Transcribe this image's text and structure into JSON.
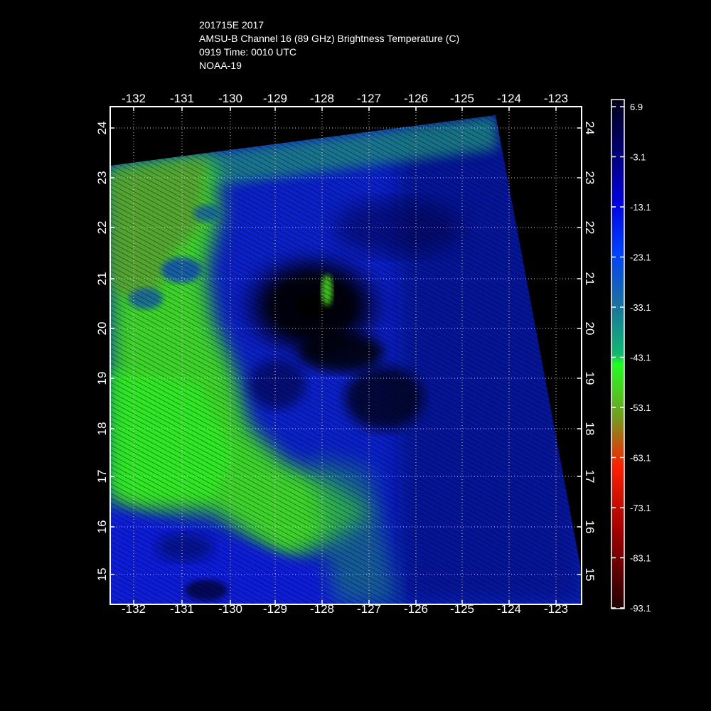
{
  "header": {
    "line1": "201715E 2017",
    "line2": "AMSU-B Channel 16 (89 GHz) Brightness Temperature (C)",
    "line3": "0919 Time: 0010 UTC",
    "line4": "NOAA-19"
  },
  "map": {
    "lon_ticks": [
      "-132",
      "-131",
      "-130",
      "-129",
      "-128",
      "-127",
      "-126",
      "-125",
      "-124",
      "-123"
    ],
    "lat_ticks": [
      "24",
      "23",
      "22",
      "21",
      "20",
      "19",
      "18",
      "17",
      "16",
      "15"
    ],
    "gridline_color": "#cccccc",
    "frame_color": "#ffffff"
  },
  "colorbar": {
    "labels": [
      "6.9",
      "-3.1",
      "-13.1",
      "-23.1",
      "-33.1",
      "-43.1",
      "-53.1",
      "-63.1",
      "-73.1",
      "-83.1",
      "-93.1"
    ],
    "colors_top_to_bottom": [
      "#000018",
      "#000070",
      "#0000e0",
      "#0040ff",
      "#1a70a0",
      "#10b870",
      "#20ff20",
      "#70a020",
      "#ff2000",
      "#a00000",
      "#200000"
    ]
  },
  "features": {
    "background": "#000000",
    "cold_cloud_color": "#44dd22",
    "warm_ocean_color": "#0a1fd8"
  }
}
